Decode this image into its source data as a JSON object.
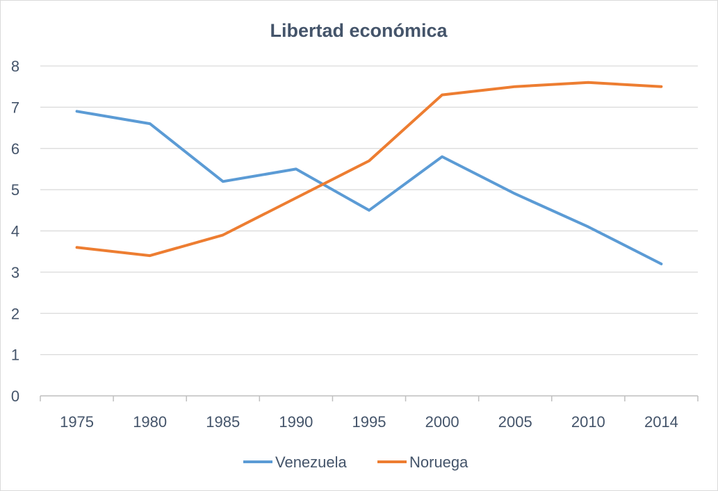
{
  "chart_data": {
    "type": "line",
    "title": "Libertad económica",
    "categories": [
      "1975",
      "1980",
      "1985",
      "1990",
      "1995",
      "2000",
      "2005",
      "2010",
      "2014"
    ],
    "series": [
      {
        "name": "Venezuela",
        "color": "#5b9bd5",
        "values": [
          6.9,
          6.6,
          5.2,
          5.5,
          4.5,
          5.8,
          4.9,
          4.1,
          3.2
        ]
      },
      {
        "name": "Noruega",
        "color": "#ed7d31",
        "values": [
          3.6,
          3.4,
          3.9,
          4.8,
          5.7,
          7.3,
          7.5,
          7.6,
          7.5
        ]
      }
    ],
    "ylim": [
      0,
      8
    ],
    "yticks": [
      "0",
      "1",
      "2",
      "3",
      "4",
      "5",
      "6",
      "7",
      "8"
    ],
    "grid": true,
    "legend_position": "bottom"
  }
}
